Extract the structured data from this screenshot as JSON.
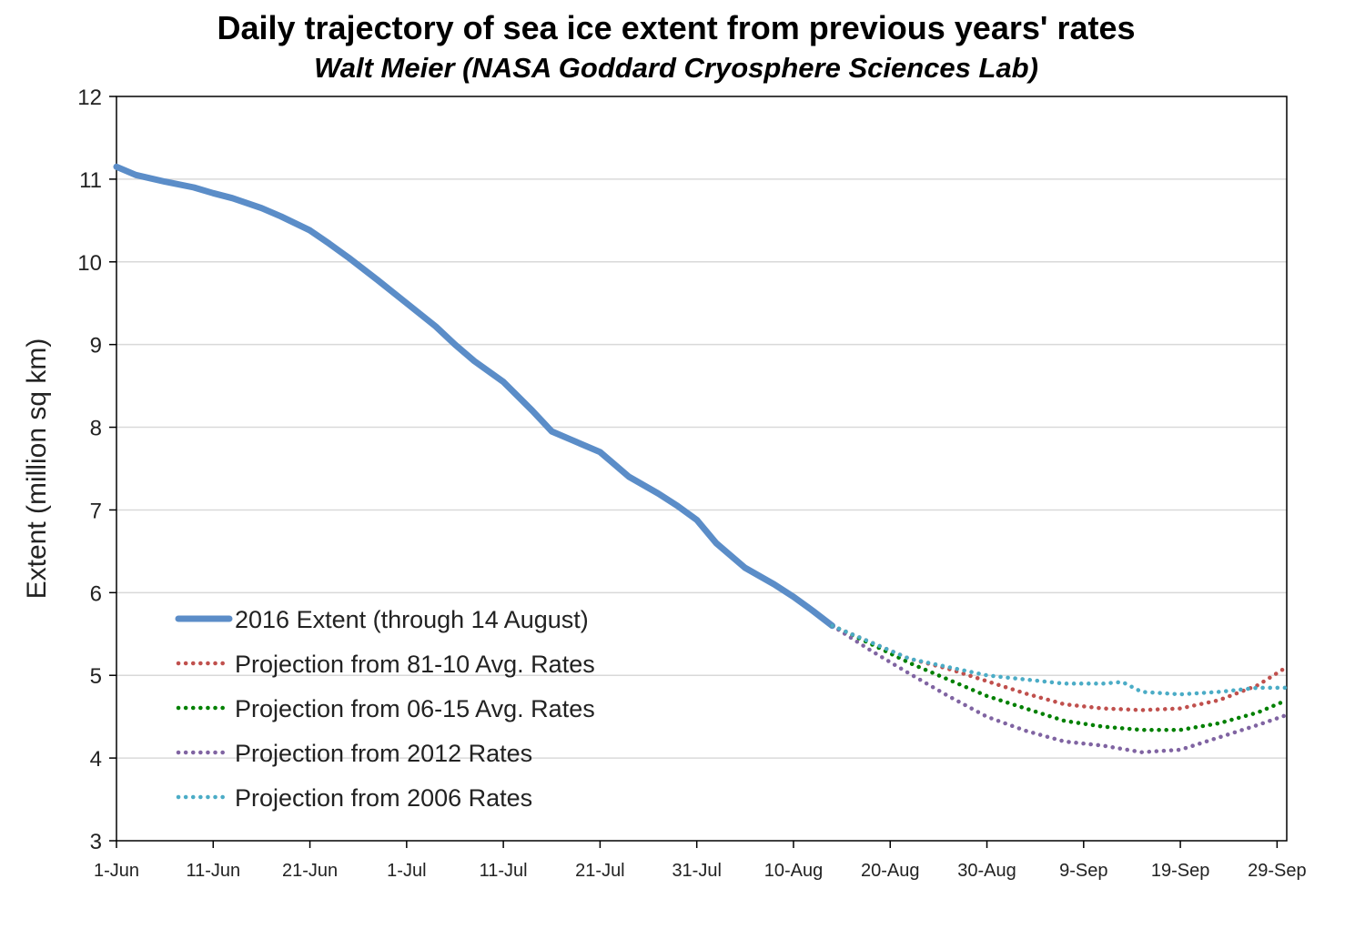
{
  "chart_data": {
    "type": "line",
    "title": "Daily trajectory of sea ice extent from previous years' rates",
    "subtitle": "Walt Meier (NASA Goddard Cryosphere Sciences Lab)",
    "xlabel": "",
    "ylabel": "Extent (million sq km)",
    "xlim": [
      "1-Jun",
      "30-Sep"
    ],
    "ylim": [
      3,
      12
    ],
    "yticks": [
      3,
      4,
      5,
      6,
      7,
      8,
      9,
      10,
      11,
      12
    ],
    "xticks": [
      "1-Jun",
      "11-Jun",
      "21-Jun",
      "1-Jul",
      "11-Jul",
      "21-Jul",
      "31-Jul",
      "10-Aug",
      "20-Aug",
      "30-Aug",
      "9-Sep",
      "19-Sep",
      "29-Sep"
    ],
    "grid": "horizontal",
    "legend_position": "lower-left",
    "series": [
      {
        "name": "2016 Extent (through 14 August)",
        "color": "#5b8dc8",
        "style": "solid",
        "x": [
          "1-Jun",
          "3-Jun",
          "6-Jun",
          "9-Jun",
          "11-Jun",
          "13-Jun",
          "16-Jun",
          "18-Jun",
          "21-Jun",
          "23-Jun",
          "25-Jun",
          "28-Jun",
          "1-Jul",
          "4-Jul",
          "6-Jul",
          "8-Jul",
          "11-Jul",
          "14-Jul",
          "16-Jul",
          "18-Jul",
          "21-Jul",
          "24-Jul",
          "27-Jul",
          "29-Jul",
          "31-Jul",
          "2-Aug",
          "5-Aug",
          "8-Aug",
          "10-Aug",
          "12-Aug",
          "14-Aug"
        ],
        "values": [
          11.15,
          11.05,
          10.97,
          10.9,
          10.83,
          10.77,
          10.65,
          10.55,
          10.38,
          10.22,
          10.05,
          9.78,
          9.5,
          9.22,
          9.0,
          8.8,
          8.55,
          8.2,
          7.95,
          7.85,
          7.7,
          7.4,
          7.2,
          7.05,
          6.88,
          6.6,
          6.3,
          6.1,
          5.95,
          5.78,
          5.6
        ]
      },
      {
        "name": "Projection from 81-10 Avg. Rates",
        "color": "#c0504d",
        "style": "dotted",
        "x": [
          "14-Aug",
          "18-Aug",
          "22-Aug",
          "26-Aug",
          "30-Aug",
          "3-Sep",
          "7-Sep",
          "11-Sep",
          "15-Sep",
          "19-Sep",
          "23-Sep",
          "27-Sep",
          "30-Sep"
        ],
        "values": [
          5.6,
          5.4,
          5.2,
          5.08,
          4.93,
          4.78,
          4.65,
          4.6,
          4.58,
          4.6,
          4.7,
          4.88,
          5.1
        ]
      },
      {
        "name": "Projection from 06-15 Avg. Rates",
        "color": "#008000",
        "style": "dotted",
        "x": [
          "14-Aug",
          "18-Aug",
          "22-Aug",
          "26-Aug",
          "30-Aug",
          "3-Sep",
          "7-Sep",
          "11-Sep",
          "15-Sep",
          "19-Sep",
          "23-Sep",
          "27-Sep",
          "30-Sep"
        ],
        "values": [
          5.6,
          5.38,
          5.15,
          4.95,
          4.75,
          4.6,
          4.45,
          4.38,
          4.34,
          4.34,
          4.42,
          4.55,
          4.7
        ]
      },
      {
        "name": "Projection from 2012 Rates",
        "color": "#8064a2",
        "style": "dotted",
        "x": [
          "14-Aug",
          "18-Aug",
          "22-Aug",
          "26-Aug",
          "30-Aug",
          "3-Sep",
          "7-Sep",
          "11-Sep",
          "15-Sep",
          "19-Sep",
          "23-Sep",
          "27-Sep",
          "30-Sep"
        ],
        "values": [
          5.6,
          5.3,
          5.02,
          4.75,
          4.5,
          4.33,
          4.2,
          4.15,
          4.07,
          4.1,
          4.25,
          4.4,
          4.52
        ]
      },
      {
        "name": "Projection from 2006 Rates",
        "color": "#4bacc6",
        "style": "dotted",
        "x": [
          "14-Aug",
          "18-Aug",
          "22-Aug",
          "26-Aug",
          "30-Aug",
          "3-Sep",
          "7-Sep",
          "11-Sep",
          "13-Sep",
          "15-Sep",
          "19-Sep",
          "23-Sep",
          "27-Sep",
          "30-Sep"
        ],
        "values": [
          5.6,
          5.4,
          5.2,
          5.1,
          5.0,
          4.95,
          4.9,
          4.9,
          4.92,
          4.8,
          4.77,
          4.8,
          4.85,
          4.85
        ]
      }
    ]
  }
}
